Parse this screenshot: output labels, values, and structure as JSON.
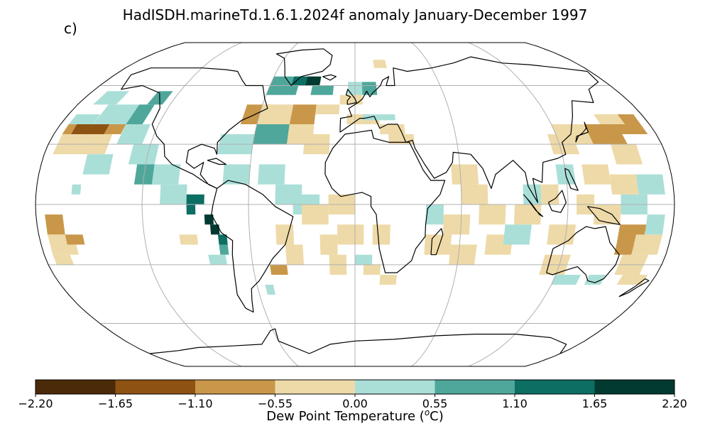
{
  "title": "HadISDH.marineTd.1.6.1.2024f anomaly January-December 1997",
  "panel_label": "c)",
  "colorbar": {
    "label": "Dew Point Temperature (ᵒC)",
    "label_text": "Dew Point Temperature (",
    "label_sup": "o",
    "label_unit": "C)",
    "ticks": [
      "−2.20",
      "−1.65",
      "−1.10",
      "−0.55",
      "0.00",
      "0.55",
      "1.10",
      "1.65",
      "2.20"
    ],
    "bins": [
      {
        "min": -2.2,
        "max": -1.65,
        "color": "#4a2a07"
      },
      {
        "min": -1.65,
        "max": -1.1,
        "color": "#8e5213"
      },
      {
        "min": -1.1,
        "max": -0.55,
        "color": "#c9974a"
      },
      {
        "min": -0.55,
        "max": 0.0,
        "color": "#eedaa8"
      },
      {
        "min": 0.0,
        "max": 0.55,
        "color": "#aadfd8"
      },
      {
        "min": 0.55,
        "max": 1.1,
        "color": "#4fa79b"
      },
      {
        "min": 1.1,
        "max": 1.65,
        "color": "#0d6e63"
      },
      {
        "min": 1.65,
        "max": 2.2,
        "color": "#023a31"
      }
    ]
  },
  "map": {
    "projection": "robinson",
    "gridlines": true,
    "coastline_color": "#000000",
    "grid_color": "#b0b0b0"
  }
}
